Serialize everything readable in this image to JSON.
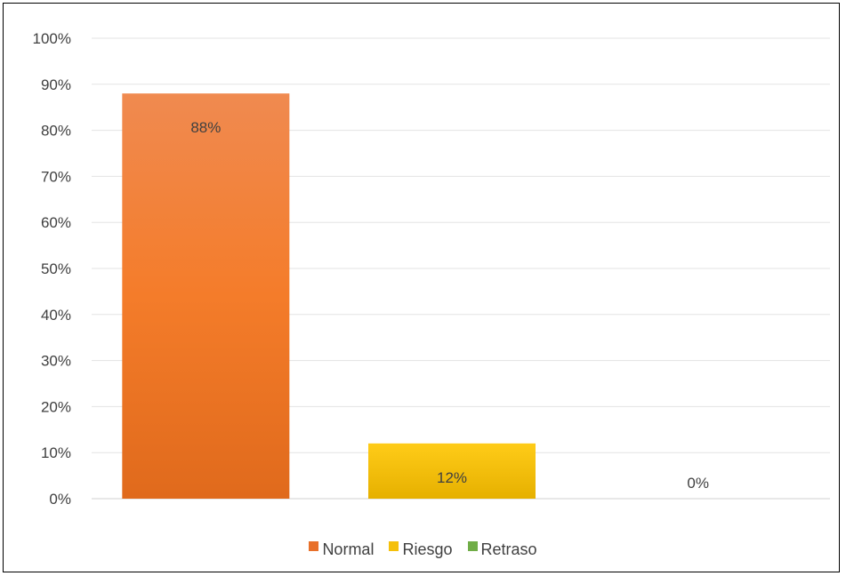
{
  "chart_data": {
    "type": "bar",
    "categories": [
      "Normal",
      "Riesgo",
      "Retraso"
    ],
    "values": [
      88,
      12,
      0
    ],
    "data_labels": [
      "88%",
      "12%",
      "0%"
    ],
    "colors": [
      "#f07c2c",
      "#f5c00a",
      "#70ad47"
    ],
    "title": "",
    "xlabel": "",
    "ylabel": "",
    "ylim": [
      0,
      100
    ],
    "y_ticks": [
      "0%",
      "10%",
      "20%",
      "30%",
      "40%",
      "50%",
      "60%",
      "70%",
      "80%",
      "90%",
      "100%"
    ],
    "grid": true,
    "legend": {
      "placement": "bottom",
      "items": [
        {
          "label": "Normal",
          "color": "#e8702a"
        },
        {
          "label": "Riesgo",
          "color": "#f5c00a"
        },
        {
          "label": "Retraso",
          "color": "#70ad47"
        }
      ]
    }
  }
}
